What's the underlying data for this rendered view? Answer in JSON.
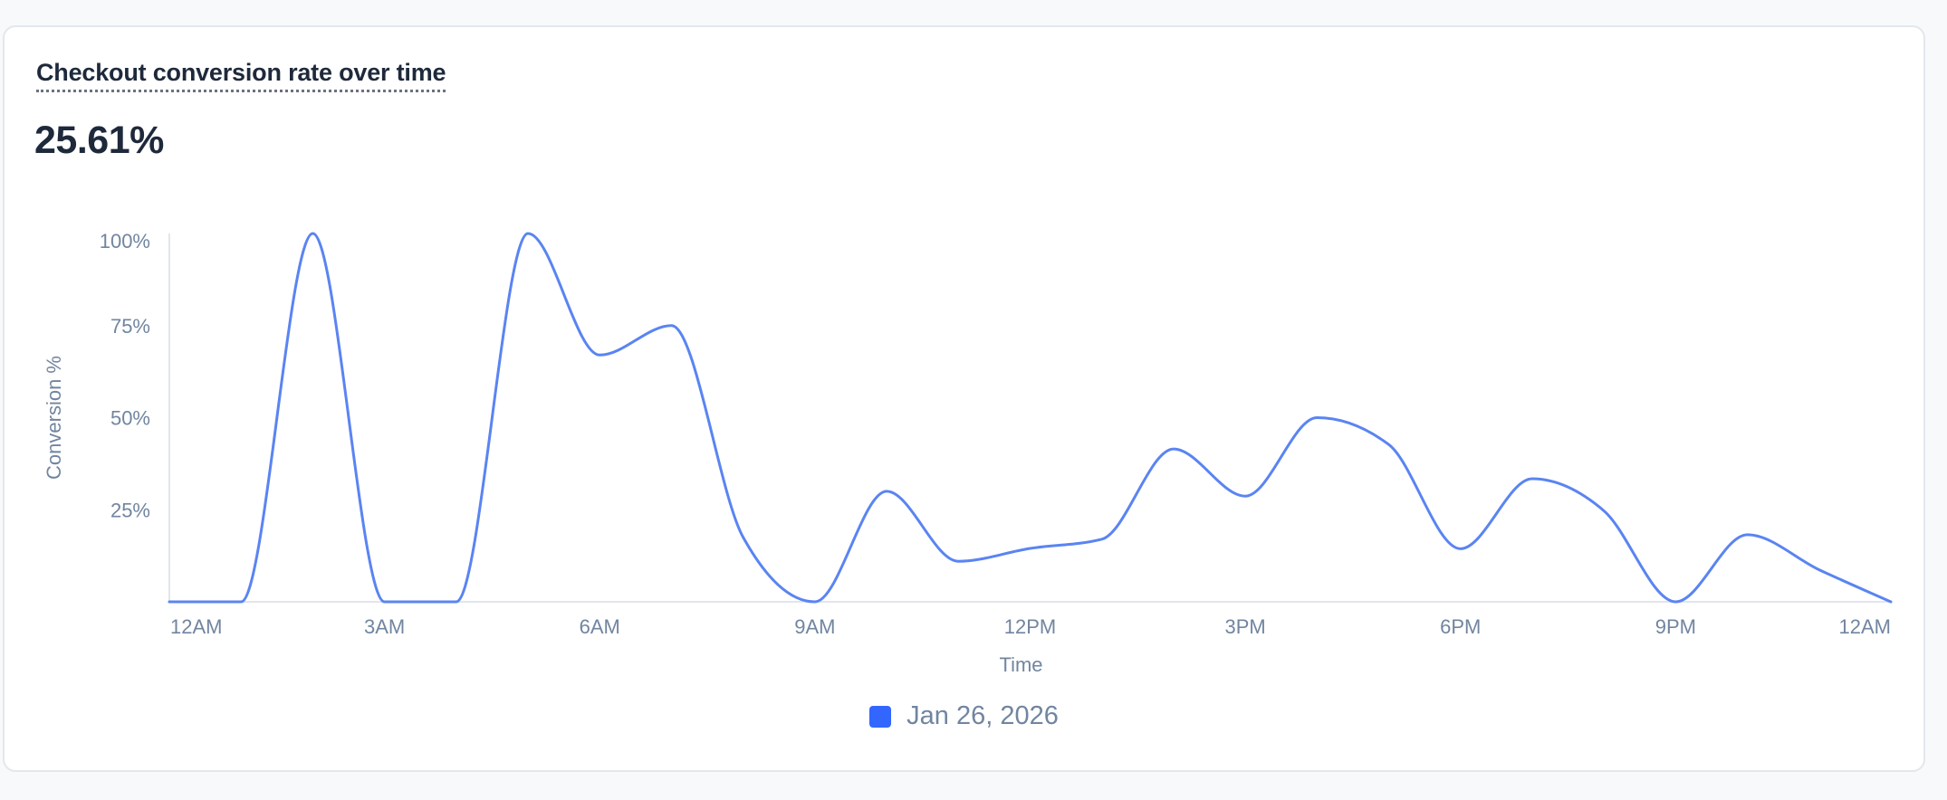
{
  "card": {
    "title": "Checkout conversion rate over time",
    "metric_value": "25.61%"
  },
  "colors": {
    "line": "#5a84f2",
    "legend_swatch": "#3366ff",
    "axis_line": "#e2e6ec",
    "tick_text": "#7185a0",
    "title_text": "#1e293b"
  },
  "legend": {
    "items": [
      {
        "label": "Jan 26, 2026",
        "color": "#3366ff"
      }
    ]
  },
  "chart_data": {
    "type": "line",
    "title": "Checkout conversion rate over time",
    "xlabel": "Time",
    "ylabel": "Conversion %",
    "ylim": [
      0,
      100
    ],
    "y_ticks": [
      {
        "value": 25,
        "label": "25%"
      },
      {
        "value": 50,
        "label": "50%"
      },
      {
        "value": 75,
        "label": "75%"
      },
      {
        "value": 100,
        "label": "100%"
      }
    ],
    "x_ticks": [
      {
        "hour": 0,
        "label": "12AM"
      },
      {
        "hour": 3,
        "label": "3AM"
      },
      {
        "hour": 6,
        "label": "6AM"
      },
      {
        "hour": 9,
        "label": "9AM"
      },
      {
        "hour": 12,
        "label": "12PM"
      },
      {
        "hour": 15,
        "label": "3PM"
      },
      {
        "hour": 18,
        "label": "6PM"
      },
      {
        "hour": 21,
        "label": "9PM"
      },
      {
        "hour": 24,
        "label": "12AM"
      }
    ],
    "x": [
      0,
      1,
      2,
      3,
      4,
      5,
      6,
      7,
      8,
      9,
      10,
      11,
      12,
      13,
      14,
      15,
      16,
      17,
      18,
      19,
      20,
      21,
      22,
      23,
      24
    ],
    "grid": false,
    "legend_position": "bottom",
    "series": [
      {
        "name": "Jan 26, 2026",
        "values": [
          0,
          0,
          100,
          0,
          0,
          100,
          67,
          75,
          17.5,
          0,
          30,
          11,
          14.5,
          17,
          41.5,
          28.7,
          50,
          42.7,
          14.4,
          33.4,
          24.7,
          0,
          18.2,
          8.7,
          0
        ]
      }
    ]
  }
}
